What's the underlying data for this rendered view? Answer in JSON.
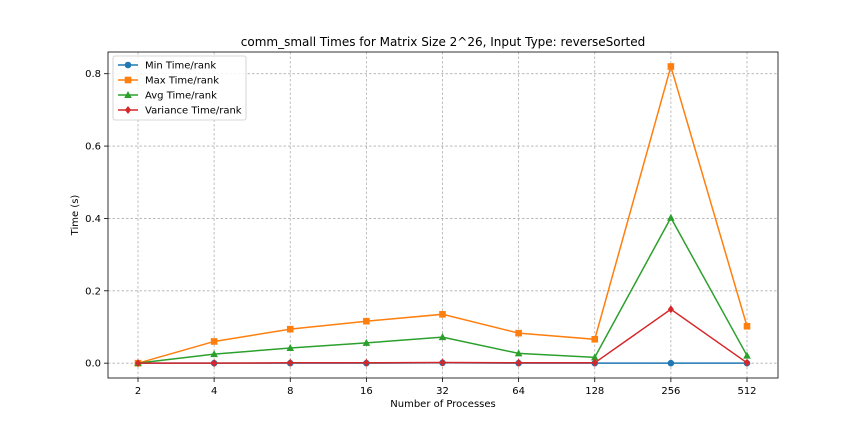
{
  "chart_data": {
    "type": "line",
    "title": "comm_small Times for Matrix Size 2^26, Input Type: reverseSorted",
    "xlabel": "Number of Processes",
    "ylabel": "Time (s)",
    "categories": [
      "2",
      "4",
      "8",
      "16",
      "32",
      "64",
      "128",
      "256",
      "512"
    ],
    "ylim": [
      -0.041,
      0.86
    ],
    "yticks": [
      "0.0",
      "0.2",
      "0.4",
      "0.6",
      "0.8"
    ],
    "grid": true,
    "legend_position": "top-left",
    "series": [
      {
        "name": "Min Time/rank",
        "color": "#1f77b4",
        "marker": "circle",
        "values": [
          0.0,
          0.0,
          0.0,
          0.0,
          0.001,
          0.0,
          0.0,
          0.0,
          0.0
        ]
      },
      {
        "name": "Max Time/rank",
        "color": "#ff7f0e",
        "marker": "square",
        "values": [
          0.0,
          0.06,
          0.094,
          0.116,
          0.135,
          0.083,
          0.066,
          0.82,
          0.102
        ]
      },
      {
        "name": "Avg Time/rank",
        "color": "#2ca02c",
        "marker": "triangle",
        "values": [
          0.0,
          0.025,
          0.042,
          0.056,
          0.072,
          0.027,
          0.016,
          0.402,
          0.021
        ]
      },
      {
        "name": "Variance Time/rank",
        "color": "#d62728",
        "marker": "diamond",
        "values": [
          0.0,
          0.0,
          0.001,
          0.001,
          0.002,
          0.001,
          0.001,
          0.149,
          0.001
        ]
      }
    ]
  }
}
